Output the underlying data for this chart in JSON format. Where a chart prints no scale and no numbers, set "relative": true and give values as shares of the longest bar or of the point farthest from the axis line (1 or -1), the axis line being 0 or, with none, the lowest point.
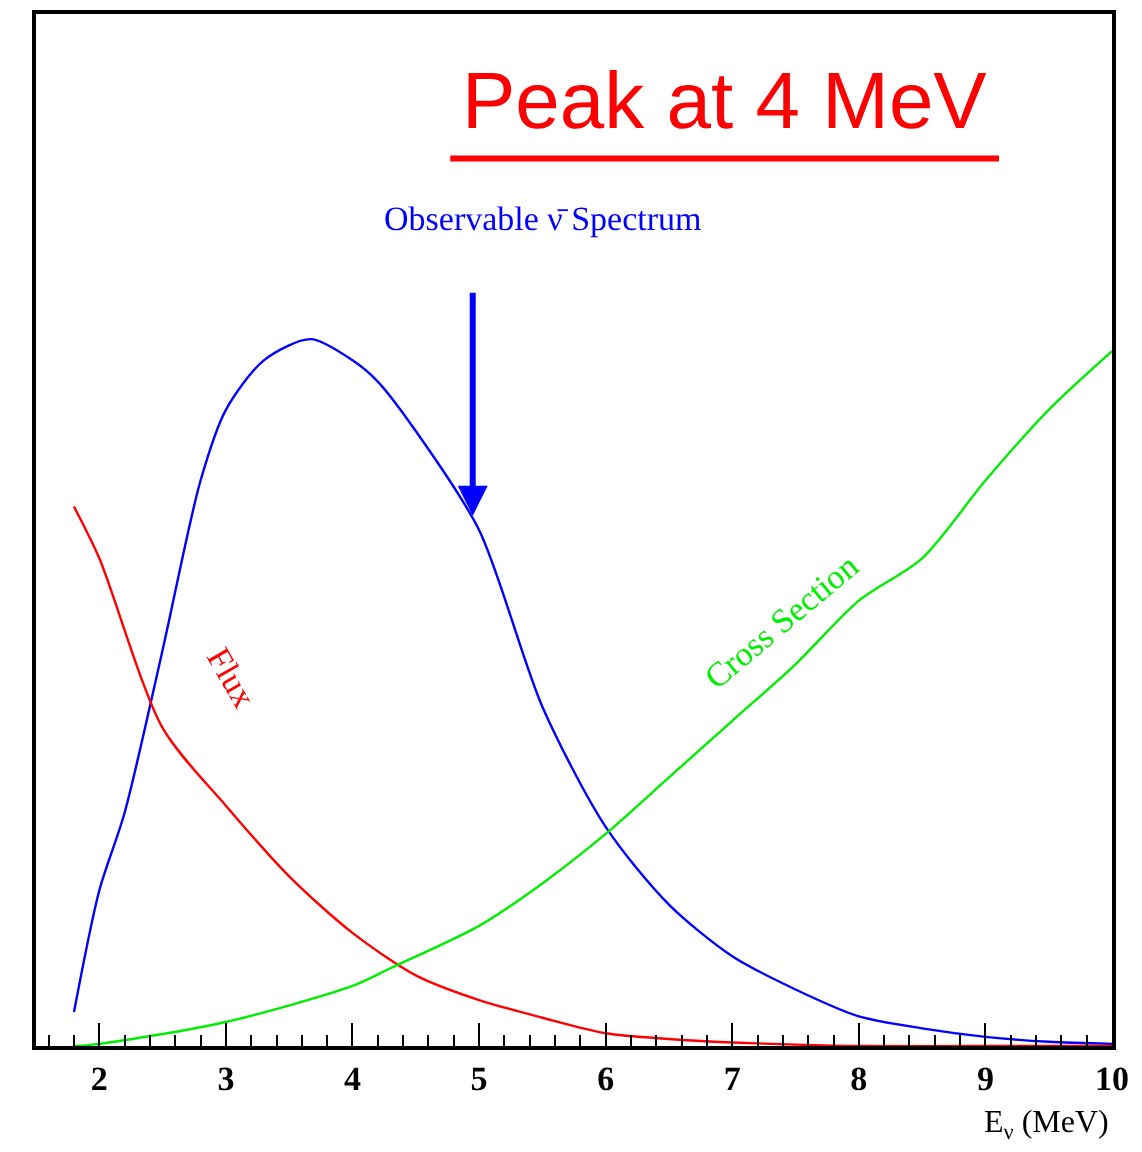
{
  "chart_data": {
    "type": "line",
    "relative": true,
    "xlabel": "E$_{ν}$ (MeV)",
    "xlim": [
      1.5,
      10
    ],
    "xticks": [
      2,
      3,
      4,
      5,
      6,
      7,
      8,
      9,
      10
    ],
    "legend": false,
    "marker": "none",
    "line_style": "solid",
    "annotations": [
      "Peak at 4 MeV"
    ],
    "series": [
      {
        "name": "Observable ν̄ Spectrum",
        "color": "#0000ff",
        "x": [
          1.8,
          2.0,
          2.2,
          2.5,
          2.8,
          3.0,
          3.3,
          3.67,
          4.0,
          4.2,
          4.5,
          5.0,
          5.5,
          6.0,
          6.5,
          7.0,
          7.5,
          8.0,
          8.5,
          9.0,
          9.5,
          10.0
        ],
        "values": [
          0.048,
          0.22,
          0.33,
          0.56,
          0.8,
          0.9,
          0.97,
          1.0,
          0.97,
          0.94,
          0.87,
          0.73,
          0.48,
          0.31,
          0.2,
          0.127,
          0.08,
          0.042,
          0.025,
          0.013,
          0.006,
          0.003
        ]
      },
      {
        "name": "Flux",
        "color": "#ff0000",
        "x": [
          1.8,
          2.0,
          2.5,
          3.0,
          3.5,
          4.0,
          4.5,
          5.0,
          5.5,
          6.0,
          6.5,
          7.0,
          7.5,
          8.0,
          9.0,
          10.0
        ],
        "values": [
          0.763,
          0.69,
          0.45,
          0.34,
          0.24,
          0.16,
          0.1,
          0.065,
          0.04,
          0.018,
          0.01,
          0.005,
          0.002,
          0.0,
          0.0,
          0.0
        ]
      },
      {
        "name": "Cross Section",
        "color": "#00ee00",
        "x": [
          1.8,
          2.0,
          3.0,
          4.0,
          4.3,
          5.0,
          5.5,
          6.0,
          6.5,
          7.0,
          7.5,
          8.0,
          8.5,
          9.0,
          9.5,
          10.0
        ],
        "values": [
          0.0,
          0.003,
          0.034,
          0.085,
          0.11,
          0.17,
          0.23,
          0.3,
          0.38,
          0.46,
          0.54,
          0.63,
          0.69,
          0.8,
          0.9,
          0.983
        ]
      }
    ]
  }
}
